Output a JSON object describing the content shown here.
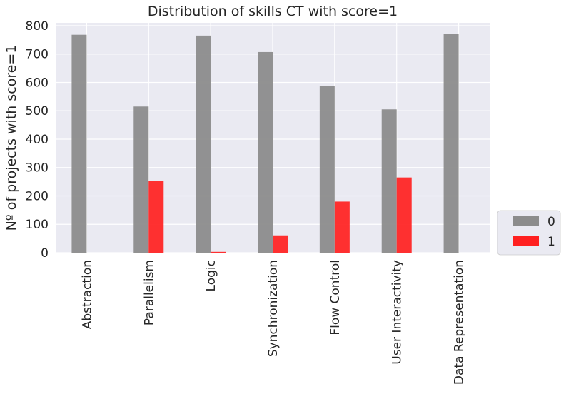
{
  "chart_data": {
    "type": "bar",
    "title": "Distribution of skills CT with score=1",
    "xlabel": "",
    "ylabel": "Nº of projects with score=1",
    "categories": [
      "Abstraction",
      "Parallelism",
      "Logic",
      "Synchronization",
      "Flow Control",
      "User Interactivity",
      "Data Representation"
    ],
    "series": [
      {
        "name": "0",
        "color": "#8c8c8c",
        "values": [
          768,
          515,
          765,
          707,
          588,
          505,
          771
        ]
      },
      {
        "name": "1",
        "color": "#ff2020",
        "values": [
          0,
          253,
          3,
          61,
          180,
          265,
          0
        ]
      }
    ],
    "ylim": [
      0,
      810
    ],
    "yticks": [
      0,
      100,
      200,
      300,
      400,
      500,
      600,
      700,
      800
    ],
    "grid": true,
    "legend_position": "lower-right outside"
  }
}
